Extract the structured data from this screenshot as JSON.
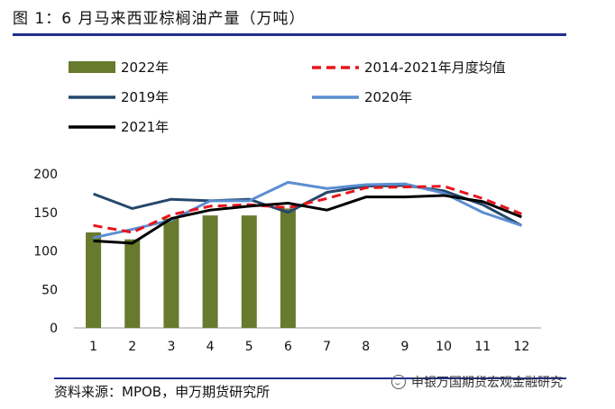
{
  "title": "图 1：6 月马来西亚棕榈油产量（万吨）",
  "source": "资料来源：MPOB，申万期货研究所",
  "watermark": "申银万国期货宏观金融研究",
  "colors": {
    "bar_2022": "#677a2e",
    "avg": "#e8141b",
    "y2019": "#24476b",
    "y2020": "#5b8ed1",
    "y2021": "#000000",
    "rule": "#1f2f8f"
  },
  "chart_data": {
    "type": "bar+line",
    "categories": [
      "1",
      "2",
      "3",
      "4",
      "5",
      "6",
      "7",
      "8",
      "9",
      "10",
      "11",
      "12"
    ],
    "ylim": [
      0,
      200
    ],
    "yticks": [
      0,
      50,
      100,
      150,
      200
    ],
    "xlabel": "",
    "ylabel": "",
    "legend_placement": "top",
    "series": [
      {
        "name": "2022年",
        "type": "bar",
        "color": "#677a2e",
        "values": [
          124,
          115,
          142,
          146,
          146,
          155,
          null,
          null,
          null,
          null,
          null,
          null
        ]
      },
      {
        "name": "2014-2021年月度均值",
        "type": "line",
        "style": "dashed",
        "color": "#e8141b",
        "values": [
          133,
          124,
          147,
          158,
          160,
          156,
          168,
          182,
          183,
          184,
          168,
          148
        ]
      },
      {
        "name": "2019年",
        "type": "line",
        "style": "solid",
        "color": "#24476b",
        "values": [
          174,
          155,
          167,
          165,
          167,
          150,
          176,
          184,
          185,
          178,
          160,
          133
        ]
      },
      {
        "name": "2020年",
        "type": "line",
        "style": "solid",
        "color": "#5b8ed1",
        "values": [
          117,
          128,
          140,
          165,
          165,
          189,
          181,
          186,
          187,
          175,
          150,
          133
        ]
      },
      {
        "name": "2021年",
        "type": "line",
        "style": "solid",
        "color": "#000000",
        "values": [
          113,
          110,
          142,
          153,
          158,
          162,
          153,
          170,
          170,
          172,
          164,
          144
        ]
      }
    ]
  }
}
